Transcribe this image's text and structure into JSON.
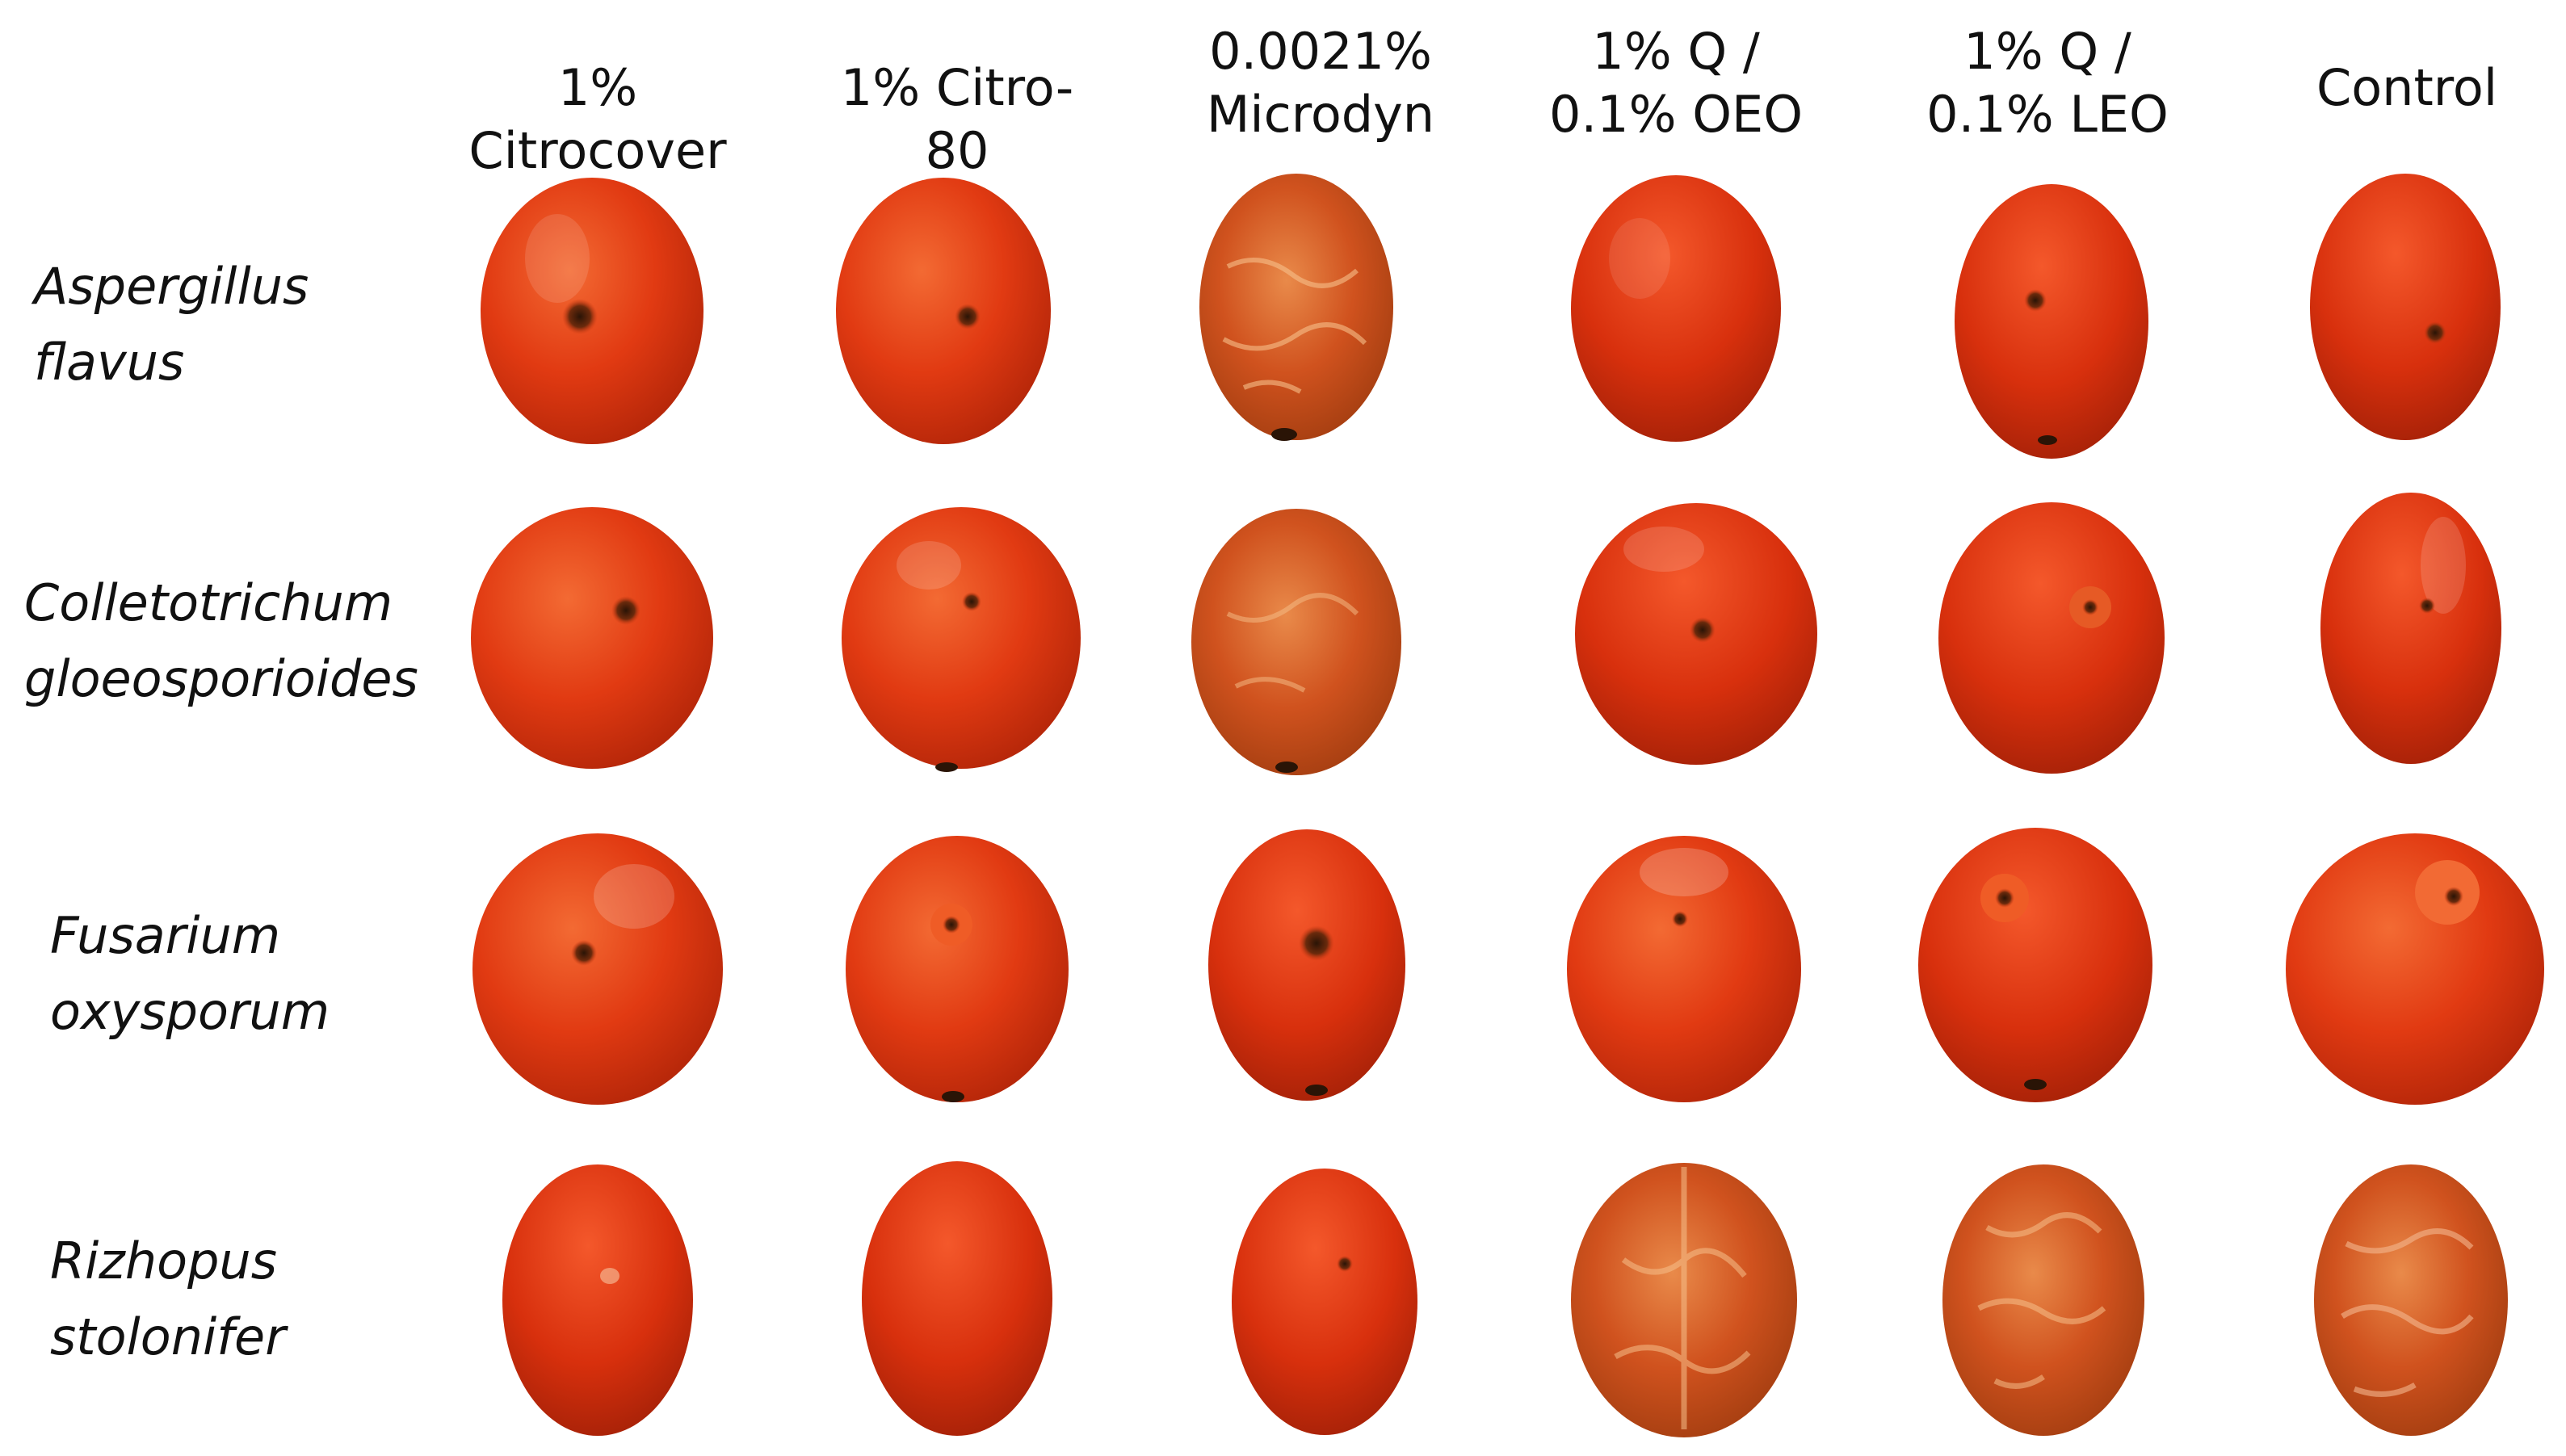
{
  "columns": [
    "1% Citrocover",
    "1% Citro-80",
    "0.0021%\nMicrodyn",
    "1% Q /\n0.1% OEO",
    "1% Q /\n0.1% LEO",
    "Control"
  ],
  "rows": [
    "Aspergillus\nflavus",
    "Colletotrichum\ngloeosporioides",
    "Fusarium\noxysporum",
    "Rizhopus\nstolonifer"
  ],
  "photo": {
    "subject": "tomato fruit",
    "skin_colors": [
      "#e13a12",
      "#c92b0c",
      "#f0602a",
      "#a82208"
    ],
    "lesion_color": "#3a1a08"
  }
}
